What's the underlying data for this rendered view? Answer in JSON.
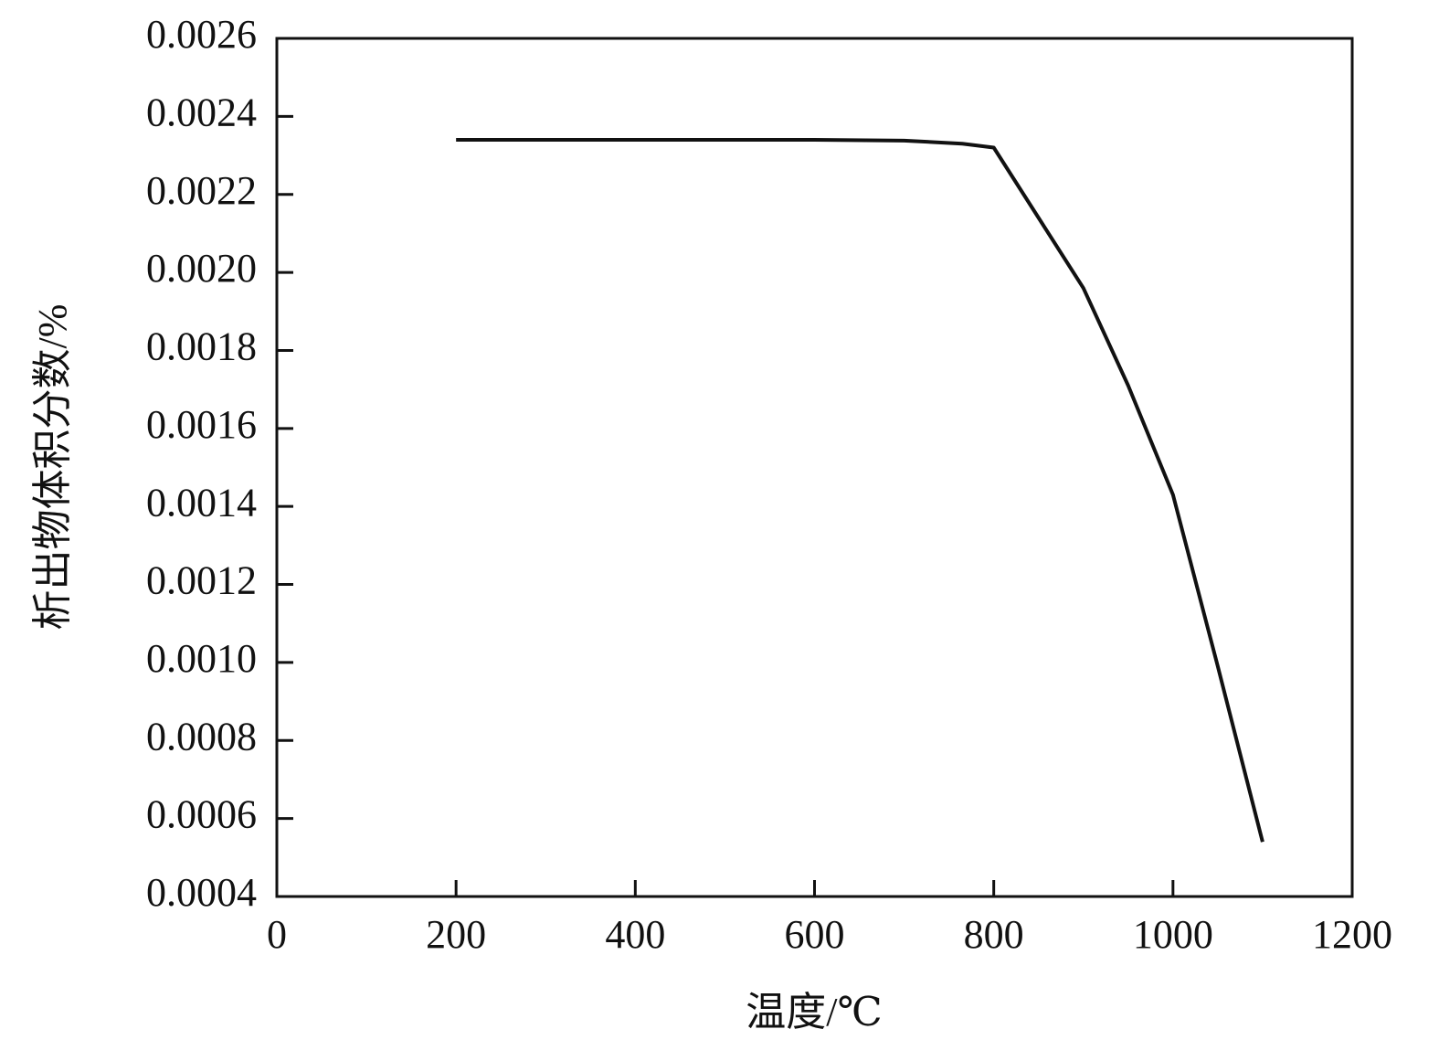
{
  "chart_data": {
    "type": "line",
    "x_label": "温度/℃",
    "y_label": "析出物体积分数/%",
    "x": [
      200,
      300,
      400,
      500,
      600,
      700,
      765,
      800,
      900,
      950,
      1000,
      1050,
      1100
    ],
    "series": [
      {
        "color": "#111111",
        "values": [
          0.00234,
          0.00234,
          0.00234,
          0.00234,
          0.00234,
          0.002338,
          0.00233,
          0.00232,
          0.00196,
          0.00171,
          0.00143,
          0.00099,
          0.00054
        ]
      }
    ],
    "xlim": [
      0,
      1200
    ],
    "xticks": [
      0,
      200,
      400,
      600,
      800,
      1000,
      1200
    ],
    "ylim": [
      0.0004,
      0.0026
    ],
    "yticks": [
      {
        "value": 0.0004,
        "label": "0.0004"
      },
      {
        "value": 0.0006,
        "label": "0.0006"
      },
      {
        "value": 0.0008,
        "label": "0.0008"
      },
      {
        "value": 0.001,
        "label": "0.0010"
      },
      {
        "value": 0.0012,
        "label": "0.0012"
      },
      {
        "value": 0.0014,
        "label": "0.0014"
      },
      {
        "value": 0.0016,
        "label": "0.0016"
      },
      {
        "value": 0.0018,
        "label": "0.0018"
      },
      {
        "value": 0.002,
        "label": "0.0020"
      },
      {
        "value": 0.0022,
        "label": "0.0022"
      },
      {
        "value": 0.0024,
        "label": "0.0024"
      },
      {
        "value": 0.0026,
        "label": "0.0026"
      }
    ],
    "grid": false
  }
}
